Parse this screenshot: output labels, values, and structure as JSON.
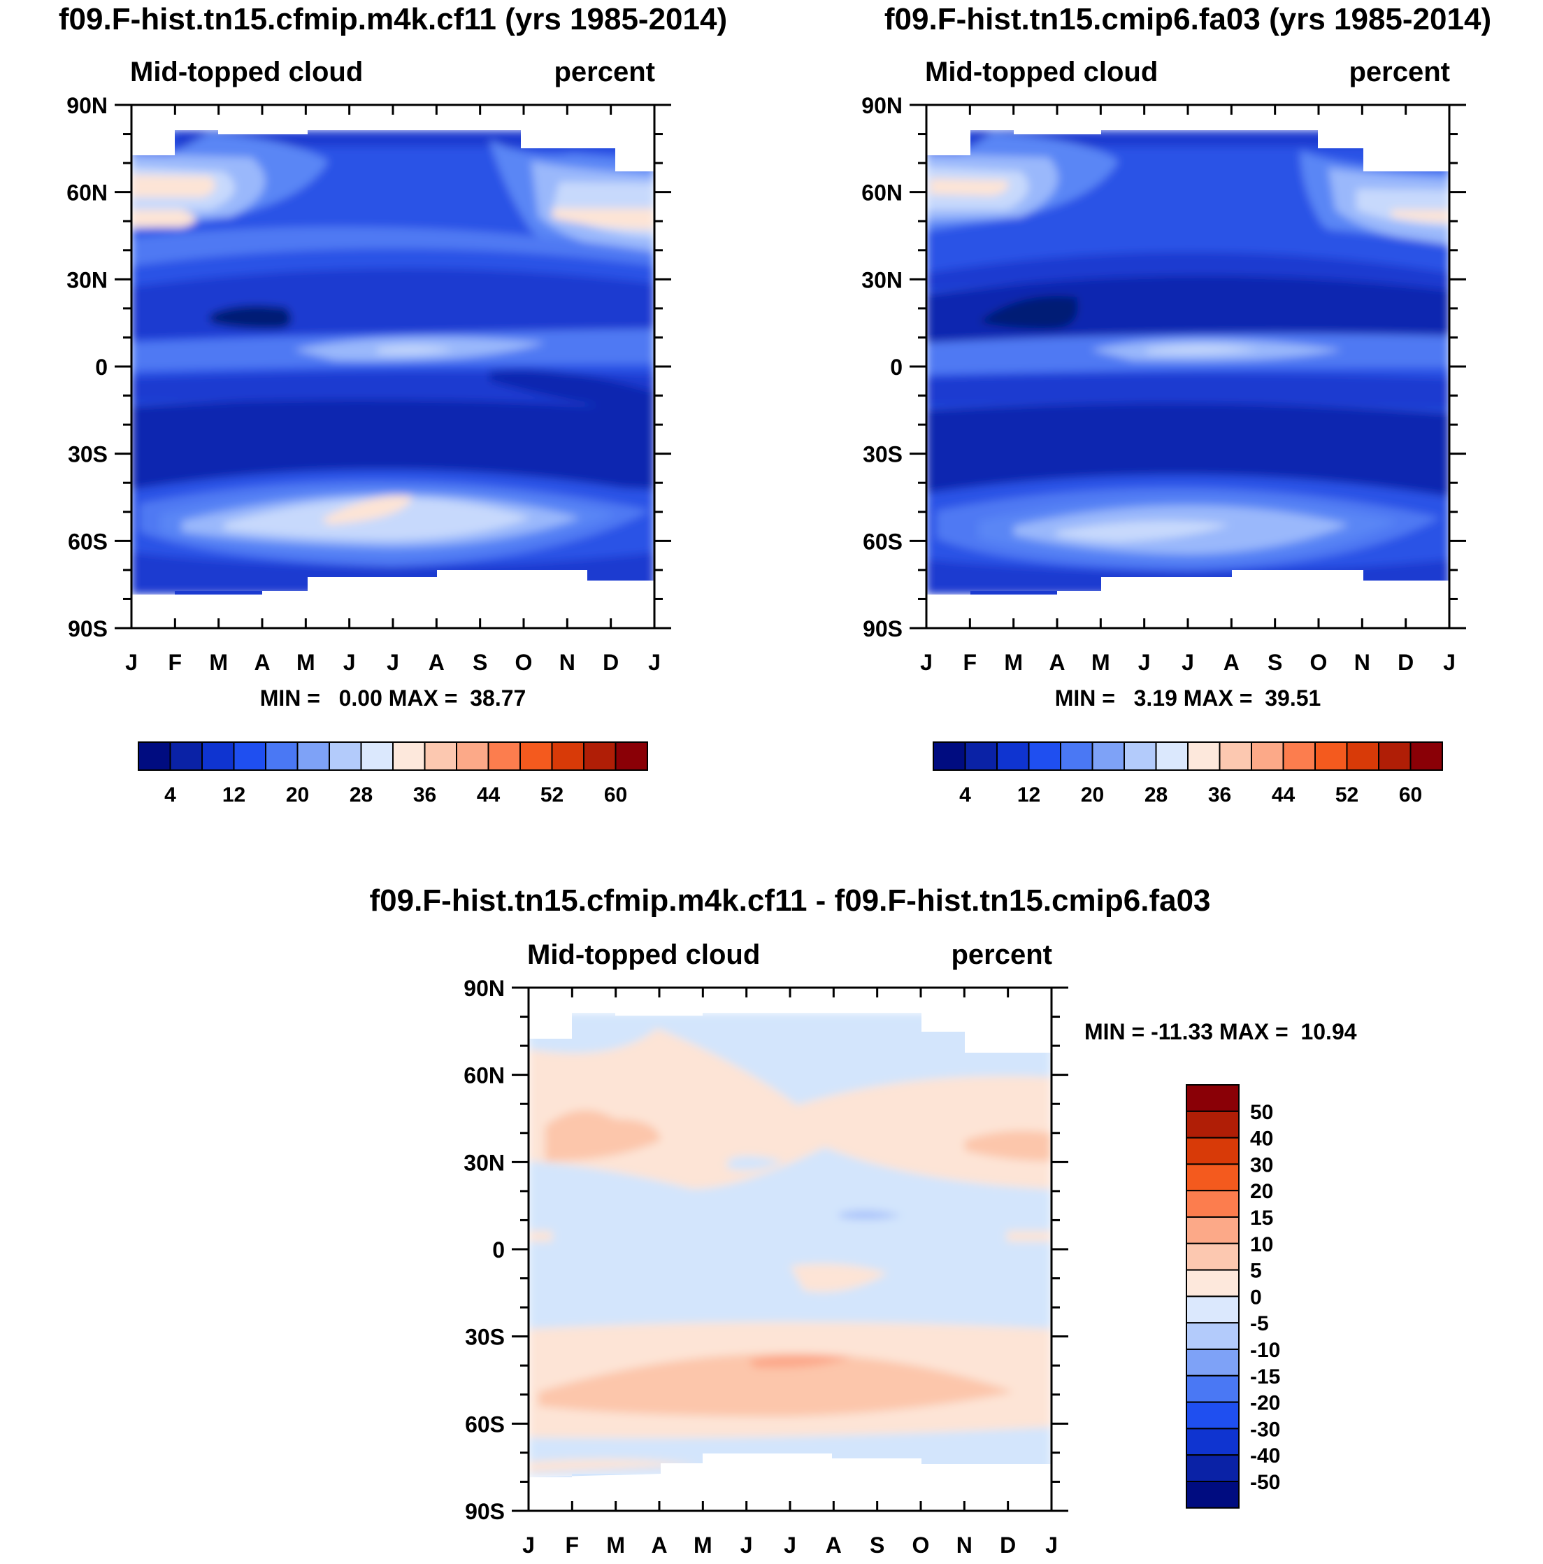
{
  "chart_data": [
    {
      "type": "heatmap",
      "title": "f09.F-hist.tn15.cfmip.m4k.cf11 (yrs 1985-2014)",
      "subtitle_left": "Mid-topped cloud",
      "subtitle_right": "percent",
      "x_ticks": [
        "J",
        "F",
        "M",
        "A",
        "M",
        "J",
        "J",
        "A",
        "S",
        "O",
        "N",
        "D",
        "J"
      ],
      "y_ticks": [
        "90N",
        "60N",
        "30N",
        "0",
        "30S",
        "60S",
        "90S"
      ],
      "stats": "MIN =   0.00 MAX =  38.77",
      "colorbar_labels": [
        "4",
        "12",
        "20",
        "28",
        "36",
        "44",
        "52",
        "60"
      ],
      "levels": [
        0,
        4,
        8,
        12,
        16,
        20,
        24,
        28,
        32,
        36,
        40,
        44,
        48,
        52,
        56,
        60,
        64
      ],
      "approx_zonal_profile": [
        {
          "lat": 75,
          "value": 24
        },
        {
          "lat": 60,
          "value": 30
        },
        {
          "lat": 50,
          "value": 30
        },
        {
          "lat": 40,
          "value": 20
        },
        {
          "lat": 30,
          "value": 12
        },
        {
          "lat": 15,
          "value": 5
        },
        {
          "lat": 5,
          "value": 18
        },
        {
          "lat": 0,
          "value": 14
        },
        {
          "lat": -15,
          "value": 8
        },
        {
          "lat": -30,
          "value": 6
        },
        {
          "lat": -45,
          "value": 26
        },
        {
          "lat": -50,
          "value": 34
        },
        {
          "lat": -60,
          "value": 20
        },
        {
          "lat": -70,
          "value": 14
        }
      ]
    },
    {
      "type": "heatmap",
      "title": "f09.F-hist.tn15.cmip6.fa03 (yrs 1985-2014)",
      "subtitle_left": "Mid-topped cloud",
      "subtitle_right": "percent",
      "x_ticks": [
        "J",
        "F",
        "M",
        "A",
        "M",
        "J",
        "J",
        "A",
        "S",
        "O",
        "N",
        "D",
        "J"
      ],
      "y_ticks": [
        "90N",
        "60N",
        "30N",
        "0",
        "30S",
        "60S",
        "90S"
      ],
      "stats": "MIN =   3.19 MAX =  39.51",
      "colorbar_labels": [
        "4",
        "12",
        "20",
        "28",
        "36",
        "44",
        "52",
        "60"
      ],
      "levels": [
        0,
        4,
        8,
        12,
        16,
        20,
        24,
        28,
        32,
        36,
        40,
        44,
        48,
        52,
        56,
        60,
        64
      ],
      "approx_zonal_profile": [
        {
          "lat": 75,
          "value": 22
        },
        {
          "lat": 60,
          "value": 29
        },
        {
          "lat": 50,
          "value": 26
        },
        {
          "lat": 40,
          "value": 16
        },
        {
          "lat": 30,
          "value": 10
        },
        {
          "lat": 15,
          "value": 5
        },
        {
          "lat": 5,
          "value": 18
        },
        {
          "lat": 0,
          "value": 14
        },
        {
          "lat": -15,
          "value": 9
        },
        {
          "lat": -30,
          "value": 8
        },
        {
          "lat": -45,
          "value": 20
        },
        {
          "lat": -55,
          "value": 26
        },
        {
          "lat": -65,
          "value": 14
        },
        {
          "lat": -72,
          "value": 10
        }
      ]
    },
    {
      "type": "heatmap",
      "title": "f09.F-hist.tn15.cfmip.m4k.cf11 - f09.F-hist.tn15.cmip6.fa03",
      "subtitle_left": "Mid-topped cloud",
      "subtitle_right": "percent",
      "x_ticks": [
        "J",
        "F",
        "M",
        "A",
        "M",
        "J",
        "J",
        "A",
        "S",
        "O",
        "N",
        "D",
        "J"
      ],
      "y_ticks": [
        "90N",
        "60N",
        "30N",
        "0",
        "30S",
        "60S",
        "90S"
      ],
      "stats": "MIN = -11.33 MAX =  10.94",
      "colorbar_labels": [
        "50",
        "40",
        "30",
        "20",
        "15",
        "10",
        "5",
        "0",
        "-5",
        "-10",
        "-15",
        "-20",
        "-30",
        "-40",
        "-50"
      ],
      "levels": [
        -50,
        -40,
        -30,
        -20,
        -15,
        -10,
        -5,
        0,
        5,
        10,
        15,
        20,
        30,
        40,
        50
      ],
      "approx_zonal_profile": [
        {
          "lat": 75,
          "value": -2
        },
        {
          "lat": 60,
          "value": 2
        },
        {
          "lat": 40,
          "value": 6
        },
        {
          "lat": 20,
          "value": -2
        },
        {
          "lat": 0,
          "value": -3
        },
        {
          "lat": -10,
          "value": 2
        },
        {
          "lat": -35,
          "value": 4
        },
        {
          "lat": -45,
          "value": 7
        },
        {
          "lat": -55,
          "value": 2
        },
        {
          "lat": -68,
          "value": -2
        }
      ]
    }
  ]
}
